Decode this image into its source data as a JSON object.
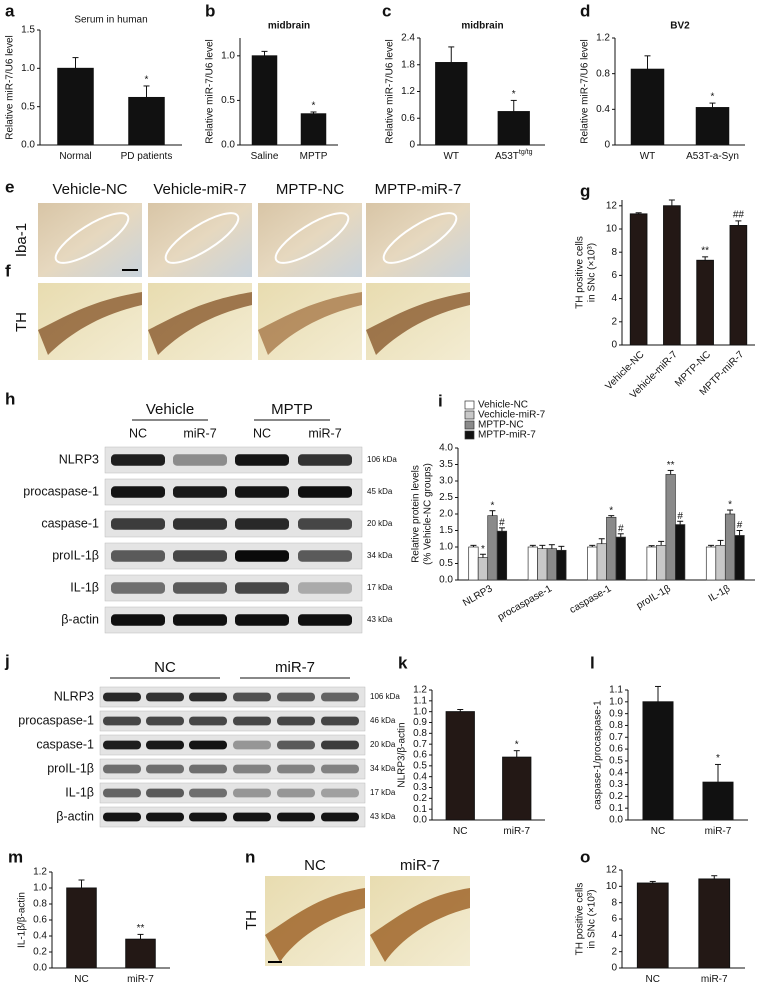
{
  "chart_data": [
    {
      "type": "bar",
      "panel": "a",
      "title": "Serum in human",
      "ylabel": "Relative miR-7/U6 level",
      "categories": [
        "Normal",
        "PD patients"
      ],
      "values": [
        1.0,
        0.62
      ],
      "errors": [
        0.14,
        0.15
      ],
      "sig": [
        null,
        "*"
      ],
      "color": "#111111",
      "ylim": [
        0,
        1.5
      ],
      "yticks": [
        {
          "value": 0,
          "label": "0.0"
        },
        0.5,
        {
          "value": 1,
          "label": "1.0"
        },
        1.5
      ]
    },
    {
      "type": "bar",
      "panel": "b",
      "title": "midbrain",
      "ylabel": "Relative miR-7/U6 level",
      "categories": [
        "Saline",
        "MPTP"
      ],
      "values": [
        1.0,
        0.35
      ],
      "errors": [
        0.05,
        0.02
      ],
      "sig": [
        null,
        "*"
      ],
      "color": "#111111",
      "ylim": [
        0,
        1.2
      ],
      "yticks": [
        {
          "value": 0,
          "label": "0.0"
        },
        0.5,
        {
          "value": 1,
          "label": "1.0"
        }
      ]
    },
    {
      "type": "bar",
      "panel": "c",
      "title": "midbrain",
      "ylabel": "Relative miR-7/U6 level",
      "categories": [
        "WT",
        "A53T"
      ],
      "category_superscripts": [
        null,
        "tg/tg"
      ],
      "values": [
        1.85,
        0.75
      ],
      "errors": [
        0.35,
        0.25
      ],
      "sig": [
        null,
        "*"
      ],
      "color": "#111111",
      "ylim": [
        0,
        2.4
      ],
      "yticks": [
        0,
        0.6,
        1.2,
        1.8,
        2.4
      ]
    },
    {
      "type": "bar",
      "panel": "d",
      "title": "BV2",
      "ylabel": "Relative miR-7/U6 level",
      "categories": [
        "WT",
        "A53T-a-Syn"
      ],
      "values": [
        0.85,
        0.42
      ],
      "errors": [
        0.15,
        0.05
      ],
      "sig": [
        null,
        "*"
      ],
      "color": "#111111",
      "ylim": [
        0,
        1.2
      ],
      "yticks": [
        0,
        0.4,
        0.8,
        1.2
      ]
    },
    {
      "type": "bar",
      "panel": "g",
      "ylabel": [
        "TH positive cells",
        "in SNc (×10³)"
      ],
      "categories": [
        "Vehicle-NC",
        "Vehicle-miR-7",
        "MPTP-NC",
        "MPTP-miR-7"
      ],
      "values": [
        11.3,
        12.0,
        7.3,
        10.3
      ],
      "errors": [
        0.1,
        0.5,
        0.3,
        0.4
      ],
      "sig": [
        null,
        null,
        "**",
        "##"
      ],
      "color": "#231815",
      "ylim": [
        0,
        12.5
      ],
      "yticks": [
        0,
        2,
        4,
        6,
        8,
        10,
        12
      ]
    },
    {
      "type": "grouped_bar",
      "panel": "i",
      "ylabel": [
        "Relative protein levels",
        "(% Vehicle-NC groups)"
      ],
      "categories": [
        "NLRP3",
        "procaspase-1",
        "caspase-1",
        "proIL-1β",
        "IL-1β"
      ],
      "series": [
        {
          "name": "Vehicle-NC",
          "color": "#ffffff",
          "values": [
            1.0,
            1.0,
            1.0,
            1.0,
            1.0
          ],
          "errors": [
            0.05,
            0.05,
            0.05,
            0.04,
            0.05
          ],
          "sig": [
            null,
            null,
            null,
            null,
            null
          ]
        },
        {
          "name": "Vechicle-miR-7",
          "color": "#c8c8c8",
          "values": [
            0.68,
            0.95,
            1.1,
            1.05,
            1.05
          ],
          "errors": [
            0.1,
            0.1,
            0.15,
            0.12,
            0.15
          ],
          "sig": [
            "*",
            null,
            null,
            null,
            null
          ]
        },
        {
          "name": "MPTP-NC",
          "color": "#8a8a8a",
          "values": [
            1.95,
            0.95,
            1.9,
            3.2,
            2.0
          ],
          "errors": [
            0.15,
            0.12,
            0.05,
            0.12,
            0.12
          ],
          "sig": [
            "*",
            null,
            "*",
            "**",
            "*"
          ]
        },
        {
          "name": "MPTP-miR-7",
          "color": "#111111",
          "values": [
            1.48,
            0.9,
            1.3,
            1.68,
            1.35
          ],
          "errors": [
            0.1,
            0.12,
            0.1,
            0.1,
            0.15
          ],
          "sig": [
            "#",
            null,
            "#",
            "#",
            "#"
          ]
        }
      ],
      "ylim": [
        0,
        4
      ],
      "yticks": [
        {
          "value": 0,
          "label": "0.0"
        },
        0.5,
        {
          "value": 1,
          "label": "1.0"
        },
        1.5,
        {
          "value": 2,
          "label": "2.0"
        },
        2.5,
        {
          "value": 3,
          "label": "3.0"
        },
        3.5,
        {
          "value": 4,
          "label": "4.0"
        }
      ]
    },
    {
      "type": "bar",
      "panel": "k",
      "ylabel": "NLRP3/β-actin",
      "categories": [
        "NC",
        "miR-7"
      ],
      "values": [
        1.0,
        0.58
      ],
      "errors": [
        0.02,
        0.06
      ],
      "sig": [
        null,
        "*"
      ],
      "color": "#231815",
      "ylim": [
        0,
        1.2
      ],
      "yticks": [
        {
          "value": 0,
          "label": "0.0"
        },
        0.1,
        0.2,
        0.3,
        0.4,
        0.5,
        0.6,
        0.7,
        0.8,
        0.9,
        {
          "value": 1,
          "label": "1.0"
        },
        1.1,
        1.2
      ]
    },
    {
      "type": "bar",
      "panel": "l",
      "ylabel": "caspase-1/procaspase-1",
      "categories": [
        "NC",
        "miR-7"
      ],
      "values": [
        1.0,
        0.32
      ],
      "errors": [
        0.13,
        0.15
      ],
      "sig": [
        null,
        "*"
      ],
      "color": "#111111",
      "ylim": [
        0,
        1.1
      ],
      "yticks": [
        {
          "value": 0,
          "label": "0.0"
        },
        0.1,
        0.2,
        0.3,
        0.4,
        0.5,
        0.6,
        0.7,
        0.8,
        0.9,
        {
          "value": 1,
          "label": "1.0"
        },
        1.1
      ]
    },
    {
      "type": "bar",
      "panel": "m",
      "ylabel": "IL-1β/β-actin",
      "categories": [
        "NC",
        "miR-7"
      ],
      "values": [
        1.0,
        0.36
      ],
      "errors": [
        0.1,
        0.06
      ],
      "sig": [
        null,
        "**"
      ],
      "color": "#231815",
      "ylim": [
        0,
        1.2
      ],
      "yticks": [
        {
          "value": 0,
          "label": "0.0"
        },
        0.2,
        0.4,
        0.6,
        0.8,
        {
          "value": 1,
          "label": "1.0"
        },
        1.2
      ]
    },
    {
      "type": "bar",
      "panel": "o",
      "ylabel": [
        "TH positive cells",
        "in SNc (×10³)"
      ],
      "categories": [
        "NC",
        "miR-7"
      ],
      "values": [
        10.4,
        10.9
      ],
      "errors": [
        0.2,
        0.4
      ],
      "sig": [
        null,
        null
      ],
      "color": "#231815",
      "ylim": [
        0,
        12
      ],
      "yticks": [
        0,
        2,
        4,
        6,
        8,
        10,
        12
      ]
    }
  ],
  "figure": {
    "e": {
      "label": "e",
      "columns": [
        "Vehicle-NC",
        "Vehicle-miR-7",
        "MPTP-NC",
        "MPTP-miR-7"
      ],
      "row_label": "Iba-1"
    },
    "f": {
      "label": "f",
      "row_label": "TH"
    },
    "h": {
      "label": "h",
      "groups": [
        "Vehicle",
        "MPTP"
      ],
      "lanes": [
        "NC",
        "miR-7",
        "NC",
        "miR-7"
      ],
      "rows": [
        {
          "name": "NLRP3",
          "kda": "106 kDa"
        },
        {
          "name": "procaspase-1",
          "kda": "45 kDa"
        },
        {
          "name": "caspase-1",
          "kda": "20 kDa"
        },
        {
          "name": "proIL-1β",
          "kda": "34 kDa"
        },
        {
          "name": "IL-1β",
          "kda": "17 kDa"
        },
        {
          "name": "β-actin",
          "kda": "43 kDa"
        }
      ]
    },
    "j": {
      "label": "j",
      "groups": [
        "NC",
        "miR-7"
      ],
      "rows": [
        {
          "name": "NLRP3",
          "kda": "106 kDa"
        },
        {
          "name": "procaspase-1",
          "kda": "46 kDa"
        },
        {
          "name": "caspase-1",
          "kda": "20 kDa"
        },
        {
          "name": "proIL-1β",
          "kda": "34 kDa"
        },
        {
          "name": "IL-1β",
          "kda": "17 kDa"
        },
        {
          "name": "β-actin",
          "kda": "43 kDa"
        }
      ]
    },
    "n": {
      "label": "n",
      "columns": [
        "NC",
        "miR-7"
      ],
      "row_label": "TH"
    }
  }
}
